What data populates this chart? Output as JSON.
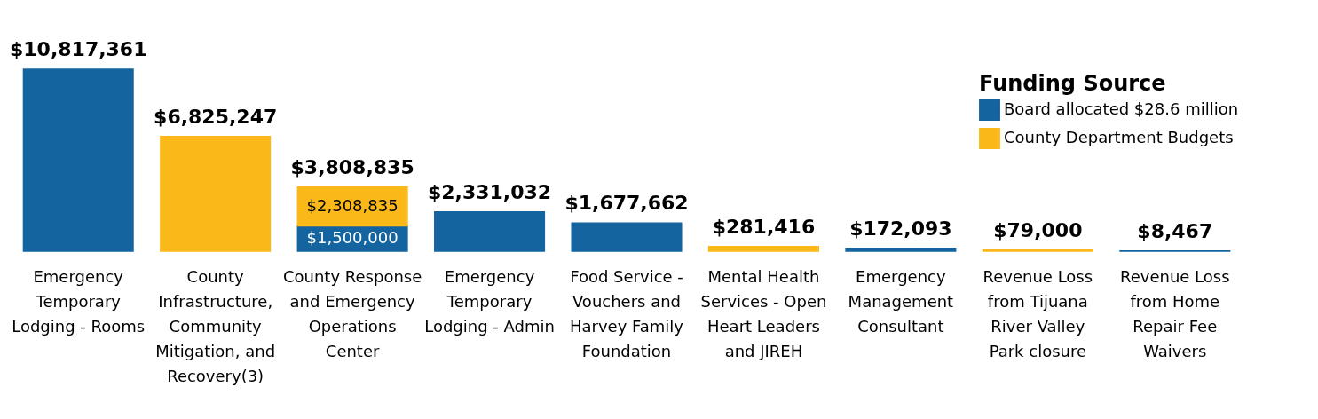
{
  "chart_data": {
    "type": "bar",
    "stacked": true,
    "legend_title": "Funding Source",
    "legend": "top right",
    "grid": false,
    "categories": [
      "Emergency Temporary Lodging - Rooms",
      "County Infrastructure, Community Mitigation, and Recovery(3)",
      "County Response and Emergency Operations Center",
      "Emergency Temporary Lodging - Admin",
      "Food Service - Vouchers and Harvey Family Foundation",
      "Mental Health Services - Open Heart Leaders and JIREH",
      "Emergency Management Consultant",
      "Revenue Loss from Tijuana River Valley Park closure",
      "Revenue Loss from Home Repair Fee Waivers"
    ],
    "series": [
      {
        "name": "Board allocated $28.6 million",
        "color": "#1464a0",
        "values": [
          10817361,
          0,
          1500000,
          2331032,
          1677662,
          0,
          172093,
          0,
          8467
        ],
        "value_labels": [
          null,
          null,
          "$1,500,000",
          null,
          null,
          null,
          null,
          null,
          null
        ]
      },
      {
        "name": "County Department Budgets",
        "color": "#fbb819",
        "values": [
          0,
          6825247,
          2308835,
          0,
          0,
          281416,
          0,
          79000,
          0
        ],
        "value_labels": [
          null,
          null,
          "$2,308,835",
          null,
          null,
          null,
          null,
          null,
          null
        ]
      }
    ],
    "totals": [
      "$10,817,361",
      "$6,825,247",
      "$3,808,835",
      "$2,331,032",
      "$1,677,662",
      "$281,416",
      "$172,093",
      "$79,000",
      "$8,467"
    ]
  }
}
